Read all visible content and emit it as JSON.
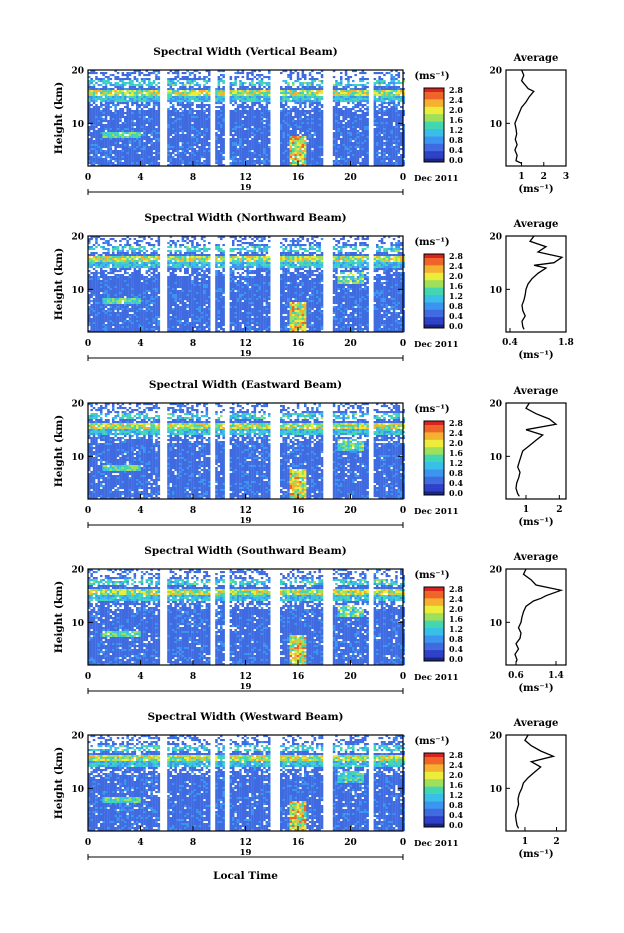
{
  "common": {
    "date_label": "Dec 2011",
    "day_label": "19",
    "xlabel": "Local Time",
    "ylabel": "Height (km)",
    "unit_label": "(ms⁻¹)",
    "avg_title": "Average",
    "avg_xlabel": "(ms⁻¹)",
    "x_ticks": [
      "0",
      "4",
      "8",
      "12",
      "16",
      "20",
      "0"
    ],
    "y_ticks": [
      "10",
      "20"
    ],
    "colorbar_ticks": [
      "0.0",
      "0.4",
      "0.8",
      "1.2",
      "1.6",
      "2.0",
      "2.4",
      "2.8"
    ],
    "colorscale": [
      "#1a237e",
      "#2e40c8",
      "#3f6ae0",
      "#3b94f0",
      "#38bfe8",
      "#43d6b0",
      "#9ee05a",
      "#ecec3a",
      "#f6b030",
      "#ef6428",
      "#d8241e"
    ]
  },
  "chart_data": [
    {
      "type": "heatmap",
      "title": "Spectral Width (Vertical Beam)",
      "xlabel": "",
      "ylabel": "Height (km)",
      "xlim": [
        0,
        24
      ],
      "ylim": [
        2,
        20
      ],
      "zlim": [
        0,
        3.0
      ],
      "avg": {
        "type": "line",
        "title": "Average",
        "xlabel": "(ms⁻¹)",
        "xlim": [
          0.3,
          3
        ],
        "x_ticks": [
          "1",
          "2",
          "3"
        ],
        "x_tick_values": [
          1,
          2,
          3
        ],
        "height": [
          2.5,
          3,
          4,
          5,
          6,
          7,
          8,
          9,
          10,
          11,
          12,
          13,
          14,
          15,
          16,
          16.5,
          17,
          18,
          19,
          20
        ],
        "values": [
          1.0,
          0.75,
          0.8,
          0.7,
          0.8,
          0.72,
          0.78,
          0.75,
          0.7,
          0.8,
          0.9,
          1.0,
          1.2,
          1.35,
          1.55,
          1.3,
          1.2,
          1.0,
          1.1,
          1.0
        ]
      }
    },
    {
      "type": "heatmap",
      "title": "Spectral Width (Northward Beam)",
      "xlabel": "",
      "ylabel": "Height (km)",
      "xlim": [
        0,
        24
      ],
      "ylim": [
        2,
        20
      ],
      "zlim": [
        0,
        3.0
      ],
      "avg": {
        "type": "line",
        "title": "Average",
        "xlabel": "(ms⁻¹)",
        "xlim": [
          0.3,
          1.8
        ],
        "x_ticks": [
          "0.4",
          "1.8"
        ],
        "x_tick_values": [
          0.4,
          1.8
        ],
        "height": [
          2.5,
          3,
          4,
          5,
          6,
          7,
          8,
          9,
          10,
          11,
          12,
          13,
          14,
          14.5,
          15,
          16,
          17,
          18,
          19,
          20
        ],
        "values": [
          0.75,
          0.72,
          0.7,
          0.78,
          0.72,
          0.7,
          0.75,
          0.78,
          0.8,
          0.85,
          0.95,
          1.1,
          1.3,
          1.0,
          1.5,
          1.7,
          1.1,
          1.3,
          0.9,
          1.0
        ]
      }
    },
    {
      "type": "heatmap",
      "title": "Spectral Width (Eastward Beam)",
      "xlabel": "",
      "ylabel": "Height (km)",
      "xlim": [
        0,
        24
      ],
      "ylim": [
        2,
        20
      ],
      "zlim": [
        0,
        3.0
      ],
      "avg": {
        "type": "line",
        "title": "Average",
        "xlabel": "(ms⁻¹)",
        "xlim": [
          0.4,
          2.2
        ],
        "x_ticks": [
          "1",
          "2"
        ],
        "x_tick_values": [
          1,
          2
        ],
        "height": [
          2.5,
          3,
          4,
          5,
          6,
          7,
          8,
          9,
          10,
          11,
          12,
          13,
          14,
          15,
          16,
          17,
          18,
          19,
          20
        ],
        "values": [
          0.8,
          0.75,
          0.7,
          0.72,
          0.78,
          0.82,
          0.75,
          0.8,
          0.85,
          0.9,
          1.1,
          1.3,
          1.5,
          1.0,
          1.9,
          1.7,
          1.3,
          1.0,
          1.1
        ]
      }
    },
    {
      "type": "heatmap",
      "title": "Spectral Width (Southward Beam)",
      "xlabel": "",
      "ylabel": "Height (km)",
      "xlim": [
        0,
        24
      ],
      "ylim": [
        2,
        20
      ],
      "zlim": [
        0,
        3.0
      ],
      "avg": {
        "type": "line",
        "title": "Average",
        "xlabel": "(ms⁻¹)",
        "xlim": [
          0.4,
          1.6
        ],
        "x_ticks": [
          "0.6",
          "1.4"
        ],
        "x_tick_values": [
          0.6,
          1.4
        ],
        "height": [
          2.5,
          3,
          4,
          5,
          6,
          7,
          8,
          9,
          10,
          11,
          12,
          13,
          14,
          14.5,
          15,
          16,
          17,
          18,
          19,
          20
        ],
        "values": [
          0.6,
          0.62,
          0.58,
          0.65,
          0.6,
          0.68,
          0.7,
          0.65,
          0.7,
          0.72,
          0.75,
          0.8,
          0.95,
          1.1,
          1.2,
          1.5,
          1.0,
          0.9,
          0.75,
          0.8
        ]
      }
    },
    {
      "type": "heatmap",
      "title": "Spectral Width (Westward Beam)",
      "xlabel": "Local Time",
      "ylabel": "Height (km)",
      "xlim": [
        0,
        24
      ],
      "ylim": [
        2,
        20
      ],
      "zlim": [
        0,
        3.0
      ],
      "avg": {
        "type": "line",
        "title": "Average",
        "xlabel": "(ms⁻¹)",
        "xlim": [
          0.4,
          2.3
        ],
        "x_ticks": [
          "1",
          "2"
        ],
        "x_tick_values": [
          1,
          2
        ],
        "height": [
          2.5,
          3,
          4,
          5,
          6,
          7,
          8,
          9,
          10,
          11,
          12,
          13,
          14,
          15,
          16,
          17,
          18,
          19,
          20
        ],
        "values": [
          0.8,
          0.75,
          0.72,
          0.7,
          0.75,
          0.8,
          0.78,
          0.82,
          0.9,
          0.95,
          1.1,
          1.3,
          1.5,
          1.2,
          1.9,
          1.5,
          1.2,
          1.0,
          1.1
        ]
      }
    }
  ]
}
